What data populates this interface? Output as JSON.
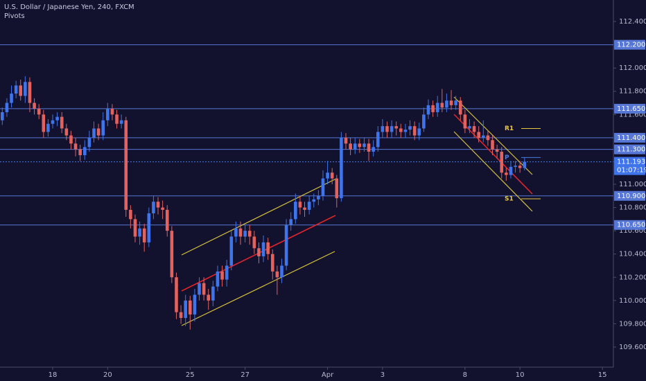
{
  "chart_data": {
    "type": "candlestick",
    "title": "U.S. Dollar / Japanese Yen, 240, FXCM",
    "subtitle": "Pivots",
    "up_color": "#3f74ea",
    "down_color": "#e2625f",
    "x": [
      1,
      2,
      3,
      4,
      5,
      6,
      7,
      8,
      9,
      10,
      11,
      12,
      13,
      14,
      15,
      16,
      17,
      18,
      19,
      20,
      21,
      22,
      23,
      24,
      25,
      26,
      27,
      28,
      29,
      30,
      31,
      32,
      33,
      34,
      35,
      36,
      37,
      38,
      39,
      40,
      41,
      42,
      43,
      44,
      45,
      46,
      47,
      48,
      49,
      50,
      51,
      52,
      53,
      54,
      55,
      56,
      57,
      58,
      59,
      60,
      61,
      62,
      63,
      64,
      65,
      66,
      67,
      68,
      69,
      70,
      71,
      72,
      73,
      74,
      75,
      76,
      77,
      78,
      79,
      80,
      81,
      82,
      83,
      84,
      85,
      86,
      87,
      88,
      89,
      90,
      91,
      92,
      93,
      94,
      95,
      96,
      97,
      98,
      99,
      100,
      101,
      102,
      103,
      104,
      105,
      106,
      107,
      108,
      109,
      110,
      111,
      112,
      113,
      114,
      115
    ],
    "open": [
      111.55,
      111.62,
      111.7,
      111.78,
      111.85,
      111.76,
      111.88,
      111.7,
      111.65,
      111.6,
      111.45,
      111.52,
      111.55,
      111.58,
      111.48,
      111.42,
      111.35,
      111.3,
      111.25,
      111.32,
      111.4,
      111.48,
      111.42,
      111.55,
      111.65,
      111.6,
      111.52,
      111.55,
      110.78,
      110.7,
      110.55,
      110.62,
      110.5,
      110.75,
      110.85,
      110.8,
      110.78,
      110.6,
      110.2,
      109.9,
      109.85,
      110.0,
      109.88,
      110.05,
      110.15,
      110.05,
      110.0,
      110.12,
      110.25,
      110.18,
      110.3,
      110.55,
      110.62,
      110.55,
      110.6,
      110.55,
      110.45,
      110.38,
      110.5,
      110.4,
      110.25,
      110.2,
      110.3,
      110.65,
      110.7,
      110.85,
      110.8,
      110.78,
      110.85,
      110.87,
      110.9,
      111.05,
      111.1,
      111.05,
      110.88,
      111.4,
      111.35,
      111.3,
      111.35,
      111.32,
      111.35,
      111.28,
      111.32,
      111.45,
      111.5,
      111.45,
      111.5,
      111.48,
      111.45,
      111.47,
      111.5,
      111.42,
      111.48,
      111.6,
      111.68,
      111.62,
      111.7,
      111.66,
      111.72,
      111.68,
      111.72,
      111.6,
      111.48,
      111.5,
      111.45,
      111.4,
      111.42,
      111.38,
      111.3,
      111.28,
      111.1,
      111.08,
      111.15,
      111.16,
      111.14
    ],
    "high": [
      111.66,
      111.74,
      111.85,
      111.89,
      111.9,
      111.93,
      111.92,
      111.74,
      111.69,
      111.64,
      111.56,
      111.6,
      111.62,
      111.62,
      111.52,
      111.46,
      111.4,
      111.34,
      111.38,
      111.46,
      111.54,
      111.52,
      111.62,
      111.7,
      111.69,
      111.64,
      111.6,
      111.58,
      110.82,
      110.74,
      110.68,
      110.66,
      110.8,
      110.9,
      110.89,
      110.86,
      110.82,
      110.64,
      110.24,
      109.96,
      110.05,
      110.04,
      110.1,
      110.2,
      110.2,
      110.1,
      110.17,
      110.3,
      110.3,
      110.35,
      110.6,
      110.68,
      110.68,
      110.66,
      110.65,
      110.6,
      110.5,
      110.56,
      110.54,
      110.44,
      110.3,
      110.36,
      110.7,
      110.76,
      110.92,
      110.9,
      110.85,
      110.9,
      110.92,
      110.95,
      111.12,
      111.2,
      111.14,
      111.08,
      111.45,
      111.44,
      111.4,
      111.4,
      111.39,
      111.4,
      111.39,
      111.38,
      111.5,
      111.56,
      111.54,
      111.55,
      111.54,
      111.52,
      111.52,
      111.55,
      111.54,
      111.53,
      111.66,
      111.73,
      111.72,
      111.76,
      111.82,
      111.78,
      111.81,
      111.76,
      111.75,
      111.64,
      111.56,
      111.54,
      111.5,
      111.55,
      111.46,
      111.42,
      111.34,
      111.32,
      111.14,
      111.2,
      111.2,
      111.2,
      111.23
    ],
    "low": [
      111.51,
      111.58,
      111.66,
      111.74,
      111.72,
      111.7,
      111.62,
      111.6,
      111.56,
      111.4,
      111.41,
      111.48,
      111.5,
      111.44,
      111.38,
      111.3,
      111.24,
      111.2,
      111.21,
      111.28,
      111.36,
      111.38,
      111.38,
      111.5,
      111.55,
      111.48,
      111.48,
      110.72,
      110.62,
      110.5,
      110.48,
      110.42,
      110.46,
      110.7,
      110.74,
      110.7,
      110.55,
      110.15,
      109.84,
      109.8,
      109.78,
      109.75,
      109.82,
      110.0,
      110.0,
      109.92,
      109.95,
      110.08,
      110.12,
      110.12,
      110.26,
      110.5,
      110.48,
      110.5,
      110.48,
      110.4,
      110.32,
      110.33,
      110.35,
      110.18,
      110.05,
      110.15,
      110.26,
      110.6,
      110.66,
      110.74,
      110.72,
      110.74,
      110.8,
      110.82,
      110.86,
      111.0,
      111.0,
      110.8,
      110.85,
      111.3,
      111.25,
      111.26,
      111.27,
      111.28,
      111.2,
      111.24,
      111.28,
      111.4,
      111.4,
      111.4,
      111.42,
      111.4,
      111.4,
      111.42,
      111.38,
      111.38,
      111.45,
      111.56,
      111.58,
      111.58,
      111.62,
      111.62,
      111.64,
      111.64,
      111.55,
      111.44,
      111.44,
      111.4,
      111.36,
      111.36,
      111.33,
      111.25,
      111.22,
      111.05,
      111.03,
      111.05,
      111.1,
      111.1,
      111.12
    ],
    "close": [
      111.62,
      111.7,
      111.78,
      111.85,
      111.76,
      111.88,
      111.7,
      111.65,
      111.6,
      111.45,
      111.52,
      111.55,
      111.58,
      111.48,
      111.42,
      111.35,
      111.3,
      111.25,
      111.32,
      111.4,
      111.48,
      111.42,
      111.55,
      111.65,
      111.6,
      111.52,
      111.55,
      110.78,
      110.7,
      110.55,
      110.62,
      110.5,
      110.75,
      110.85,
      110.8,
      110.78,
      110.6,
      110.2,
      109.9,
      109.85,
      110.0,
      109.88,
      110.05,
      110.15,
      110.05,
      110.0,
      110.12,
      110.25,
      110.18,
      110.3,
      110.55,
      110.62,
      110.55,
      110.6,
      110.55,
      110.45,
      110.38,
      110.5,
      110.4,
      110.25,
      110.2,
      110.3,
      110.65,
      110.7,
      110.85,
      110.8,
      110.78,
      110.85,
      110.87,
      110.9,
      111.05,
      111.1,
      111.05,
      110.88,
      111.4,
      111.35,
      111.3,
      111.35,
      111.32,
      111.35,
      111.28,
      111.32,
      111.45,
      111.5,
      111.45,
      111.5,
      111.48,
      111.45,
      111.47,
      111.5,
      111.42,
      111.48,
      111.6,
      111.68,
      111.62,
      111.7,
      111.66,
      111.72,
      111.68,
      111.72,
      111.6,
      111.48,
      111.5,
      111.45,
      111.4,
      111.42,
      111.38,
      111.3,
      111.28,
      111.1,
      111.08,
      111.15,
      111.16,
      111.14,
      111.193
    ],
    "xlim": [
      0.5,
      134.4
    ],
    "xticks": [
      {
        "value": 12,
        "label": "18"
      },
      {
        "value": 24,
        "label": "20"
      },
      {
        "value": 42,
        "label": "25"
      },
      {
        "value": 54,
        "label": "27"
      },
      {
        "value": 72,
        "label": "Apr"
      },
      {
        "value": 84,
        "label": "3"
      },
      {
        "value": 102,
        "label": "8"
      },
      {
        "value": 114,
        "label": "10"
      },
      {
        "value": 132,
        "label": "15"
      }
    ],
    "ylim": [
      109.427,
      112.585
    ],
    "yticks": [
      {
        "value": 112.4,
        "label": "112.400"
      },
      {
        "value": 112.0,
        "label": "112.000"
      },
      {
        "value": 111.8,
        "label": "111.800"
      },
      {
        "value": 111.6,
        "label": "111.600"
      },
      {
        "value": 111.0,
        "label": "111.000"
      },
      {
        "value": 110.8,
        "label": "110.800"
      },
      {
        "value": 110.6,
        "label": "110.600"
      },
      {
        "value": 110.4,
        "label": "110.400"
      },
      {
        "value": 110.2,
        "label": "110.200"
      },
      {
        "value": 110.0,
        "label": "110.000"
      },
      {
        "value": 109.8,
        "label": "109.800"
      },
      {
        "value": 109.6,
        "label": "109.600"
      }
    ],
    "levels_color": "#5677d6",
    "levels": [
      {
        "value": 112.2,
        "label": "112.200"
      },
      {
        "value": 111.65,
        "label": "111.650"
      },
      {
        "value": 111.4,
        "label": "111.400"
      },
      {
        "value": 111.3,
        "label": "111.300"
      },
      {
        "value": 110.9,
        "label": "110.900"
      },
      {
        "value": 110.65,
        "label": "110.650"
      }
    ],
    "last_price": {
      "value": 111.193,
      "label": "111.193"
    },
    "countdown": "01:07:19",
    "pivots": [
      {
        "name": "R1",
        "value": 111.48,
        "color": "#e8c840"
      },
      {
        "name": "P",
        "value": 111.23,
        "color": "#4a7fe0"
      },
      {
        "name": "S1",
        "value": 110.875,
        "color": "#e8c840"
      }
    ]
  }
}
